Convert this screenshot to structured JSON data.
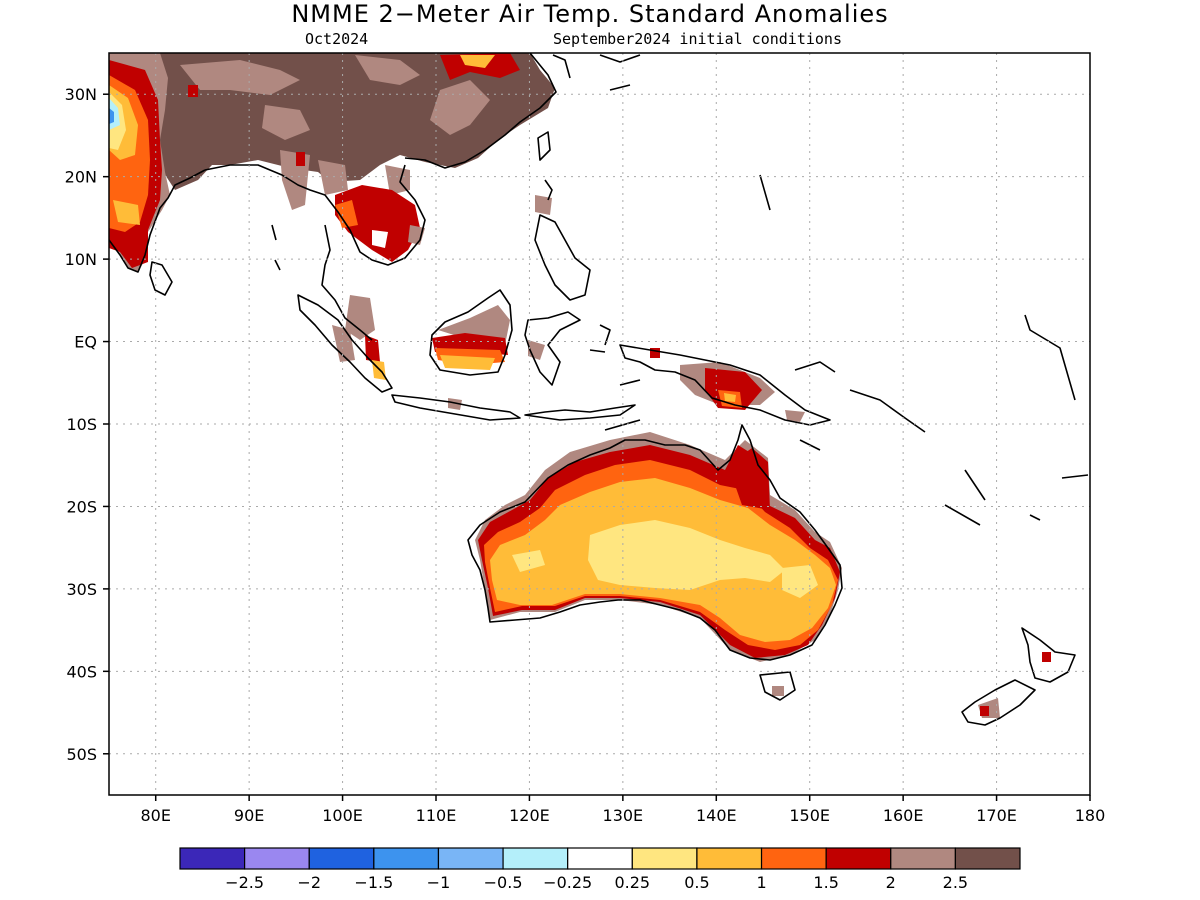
{
  "title": "NMME 2−Meter Air Temp. Standard Anomalies",
  "subtitle_left": "Oct2024",
  "subtitle_right": "September2024 initial conditions",
  "map": {
    "lon_range": [
      75,
      180
    ],
    "lat_range": [
      -55,
      35
    ],
    "lon_ticks": [
      "80E",
      "90E",
      "100E",
      "110E",
      "120E",
      "130E",
      "140E",
      "150E",
      "160E",
      "170E",
      "180"
    ],
    "lat_ticks": [
      "30N",
      "20N",
      "10N",
      "EQ",
      "10S",
      "20S",
      "30S",
      "40S",
      "50S"
    ],
    "grid": true
  },
  "colorbar": {
    "colors": [
      "#3b27b8",
      "#9a87f0",
      "#1f62e0",
      "#3d93ee",
      "#79b5f6",
      "#b4effa",
      "#ffffff",
      "#ffe680",
      "#ffbc38",
      "#ff6410",
      "#c00000",
      "#b08880",
      "#72504a"
    ],
    "labels": [
      "−2.5",
      "−2",
      "−1.5",
      "−1",
      "−0.5",
      "−0.25",
      "0.25",
      "0.5",
      "1",
      "1.5",
      "2",
      "2.5"
    ]
  },
  "anomaly_regions": [
    {
      "name": "east-asia",
      "level": "2.5",
      "color": "#72504a"
    },
    {
      "name": "southeast-asia",
      "level": "2",
      "color": "#c00000"
    },
    {
      "name": "india",
      "level": "1.5",
      "color": "#ff6410"
    },
    {
      "name": "australia-interior",
      "level": "0.5",
      "color": "#ffe680"
    },
    {
      "name": "australia-outer",
      "level": "1",
      "color": "#ffbc38"
    },
    {
      "name": "australia-coast",
      "level": "2",
      "color": "#c00000"
    },
    {
      "name": "borneo",
      "level": "1",
      "color": "#ffbc38"
    },
    {
      "name": "new-guinea",
      "level": "2",
      "color": "#c00000"
    }
  ]
}
